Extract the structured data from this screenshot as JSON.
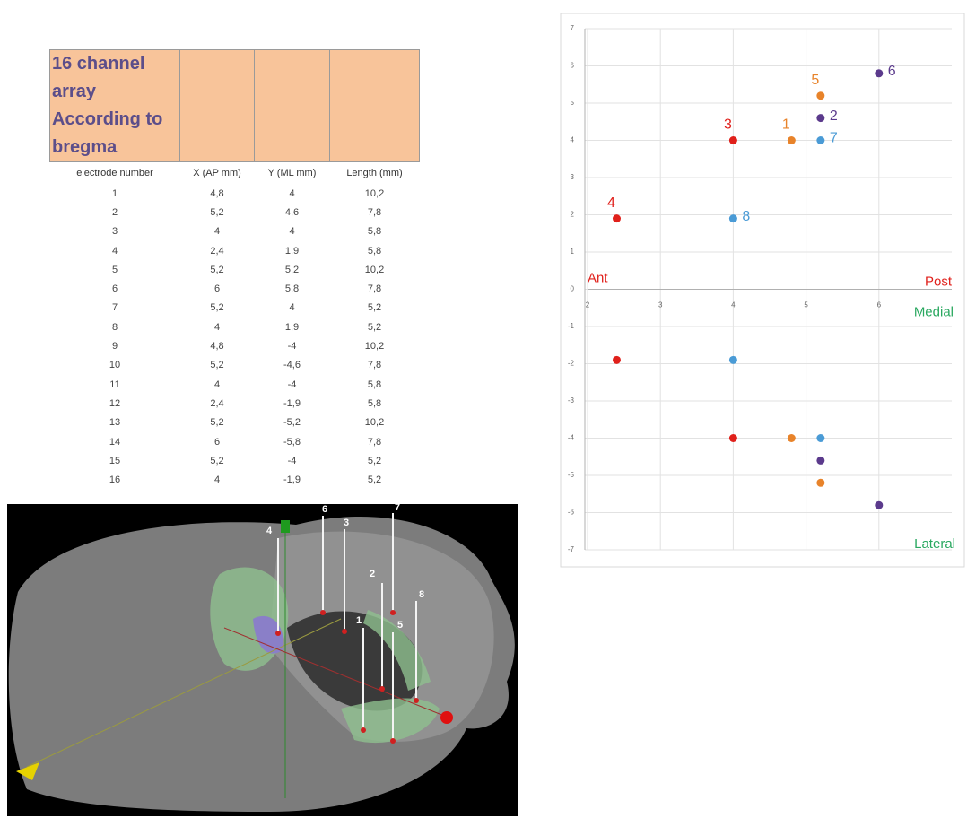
{
  "table": {
    "title": "16 channel array According to bregma",
    "headers": [
      "electrode number",
      "X (AP mm)",
      "Y (ML mm)",
      "Length (mm)"
    ],
    "rows": [
      [
        "1",
        "4,8",
        "4",
        "10,2"
      ],
      [
        "2",
        "5,2",
        "4,6",
        "7,8"
      ],
      [
        "3",
        "4",
        "4",
        "5,8"
      ],
      [
        "4",
        "2,4",
        "1,9",
        "5,8"
      ],
      [
        "5",
        "5,2",
        "5,2",
        "10,2"
      ],
      [
        "6",
        "6",
        "5,8",
        "7,8"
      ],
      [
        "7",
        "5,2",
        "4",
        "5,2"
      ],
      [
        "8",
        "4",
        "1,9",
        "5,2"
      ],
      [
        "9",
        "4,8",
        "-4",
        "10,2"
      ],
      [
        "10",
        "5,2",
        "-4,6",
        "7,8"
      ],
      [
        "11",
        "4",
        "-4",
        "5,8"
      ],
      [
        "12",
        "2,4",
        "-1,9",
        "5,8"
      ],
      [
        "13",
        "5,2",
        "-5,2",
        "10,2"
      ],
      [
        "14",
        "6",
        "-5,8",
        "7,8"
      ],
      [
        "15",
        "5,2",
        "-4",
        "5,2"
      ],
      [
        "16",
        "4",
        "-1,9",
        "5,2"
      ]
    ]
  },
  "chart_data": {
    "type": "scatter",
    "xlim": [
      2,
      7
    ],
    "ylim": [
      -7,
      7
    ],
    "xticks": [
      2,
      3,
      4,
      5,
      6
    ],
    "yticks": [
      7,
      6,
      5,
      4,
      3,
      2,
      1,
      0,
      -1,
      -2,
      -3,
      -4,
      -5,
      -6,
      -7
    ],
    "grid": true,
    "annotations": [
      {
        "text": "Ant",
        "color": "#e0201b"
      },
      {
        "text": "Post",
        "color": "#e0201b"
      },
      {
        "text": "Medial",
        "color": "#2aa860"
      },
      {
        "text": "Lateral",
        "color": "#2aa860"
      }
    ],
    "series": [
      {
        "color": "#e0201b",
        "x": [
          2.4,
          4,
          2.4,
          4
        ],
        "values": [
          1.9,
          4,
          -1.9,
          -4
        ],
        "labels": [
          4,
          3,
          null,
          null
        ]
      },
      {
        "color": "#e8832a",
        "x": [
          4.8,
          5.2,
          4.8,
          5.2
        ],
        "values": [
          4,
          5.2,
          -4,
          -5.2
        ],
        "labels": [
          1,
          5,
          null,
          null
        ]
      },
      {
        "color": "#5b3a8c",
        "x": [
          5.2,
          6,
          5.2,
          6
        ],
        "values": [
          4.6,
          5.8,
          -4.6,
          -5.8
        ],
        "labels": [
          2,
          6,
          null,
          null
        ]
      },
      {
        "color": "#4a9bd6",
        "x": [
          5.2,
          4,
          5.2,
          4
        ],
        "values": [
          4,
          1.9,
          -4,
          -1.9
        ],
        "labels": [
          7,
          8,
          null,
          null
        ]
      }
    ]
  },
  "brain_image": {
    "electrode_labels": [
      "4",
      "6",
      "3",
      "7",
      "2",
      "8",
      "1",
      "5"
    ]
  }
}
